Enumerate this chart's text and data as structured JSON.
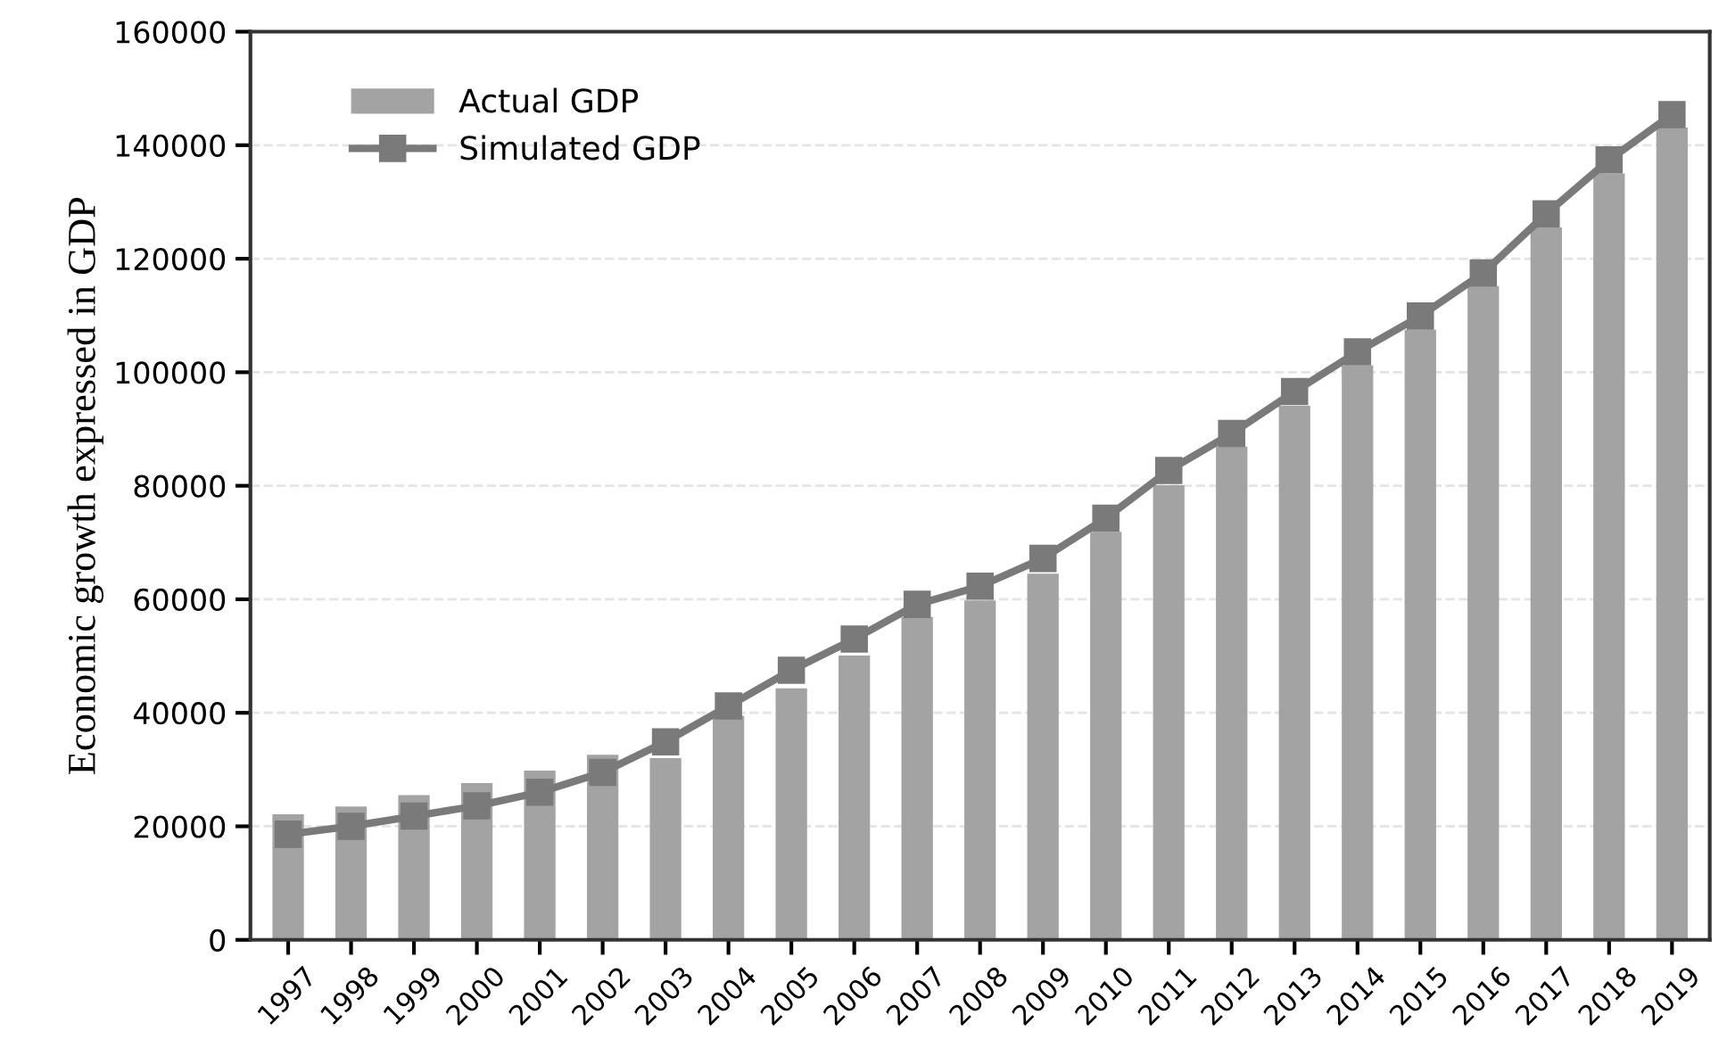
{
  "chart_data": {
    "type": "bar",
    "ylabel": "Economic growth expressed in GDP",
    "categories": [
      "1997",
      "1998",
      "1999",
      "2000",
      "2001",
      "2002",
      "2003",
      "2004",
      "2005",
      "2006",
      "2007",
      "2008",
      "2009",
      "2010",
      "2011",
      "2012",
      "2013",
      "2014",
      "2015",
      "2016",
      "2017",
      "2018",
      "2019"
    ],
    "series": [
      {
        "name": "Actual GDP",
        "color": "#a3a3a3",
        "values": [
          22100,
          23500,
          25500,
          27600,
          29800,
          32600,
          32000,
          39500,
          44300,
          50100,
          56900,
          59800,
          64500,
          71900,
          80100,
          86900,
          94100,
          101200,
          107500,
          115200,
          125500,
          135000,
          143100
        ]
      },
      {
        "name": "Simulated GDP",
        "type": "line",
        "color": "#7a7a7a",
        "marker": "square",
        "values": [
          18600,
          20000,
          21800,
          23600,
          26000,
          29500,
          34900,
          41200,
          47500,
          53000,
          59100,
          62300,
          67200,
          74300,
          82700,
          89200,
          96600,
          103600,
          109900,
          117500,
          127900,
          137400,
          145400
        ]
      }
    ],
    "ylim": [
      0,
      160000
    ],
    "yticks": [
      0,
      20000,
      40000,
      60000,
      80000,
      100000,
      120000,
      140000,
      160000
    ],
    "grid": "y",
    "legend": "top left"
  }
}
